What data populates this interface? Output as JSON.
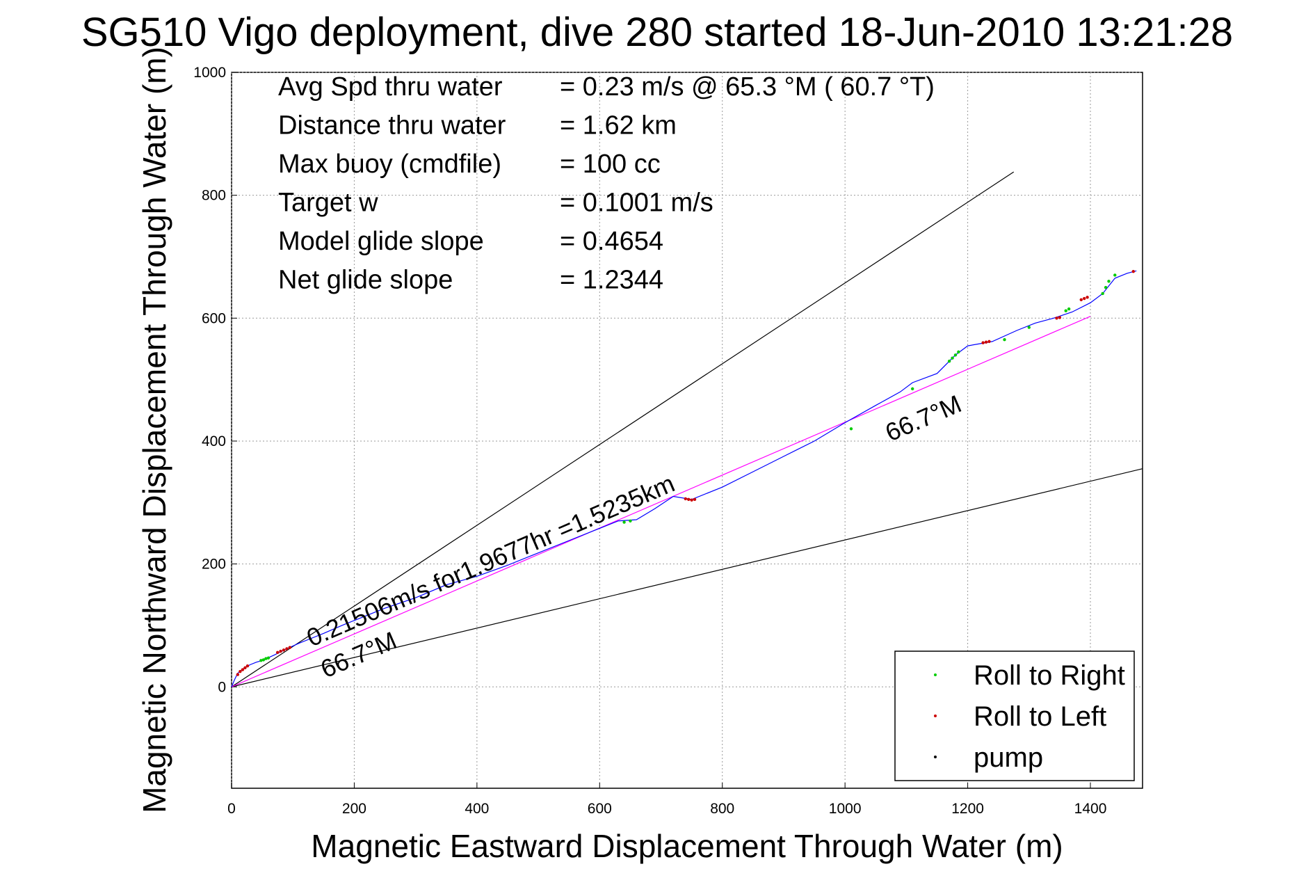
{
  "title": "SG510 Vigo deployment, dive 280 started 18-Jun-2010 13:21:28",
  "stats": [
    {
      "label": "Avg Spd thru water",
      "value": "=  0.23 m/s @  65.3 °M ( 60.7 °T)"
    },
    {
      "label": "Distance thru water",
      "value": "=  1.62 km"
    },
    {
      "label": "Max buoy (cmdfile)",
      "value": "= 100 cc"
    },
    {
      "label": "Target w",
      "value": "= 0.1001 m/s"
    },
    {
      "label": "Model glide slope",
      "value": "= 0.4654"
    },
    {
      "label": "Net glide slope",
      "value": "= 1.2344"
    }
  ],
  "annotations": {
    "speed_label": "0.21506m/s for1.9677hr =1.5235km",
    "heading_label_near": "66.7°M",
    "heading_label_far": "66.7°M"
  },
  "chart_data": {
    "type": "line",
    "xlabel": "Magnetic Eastward Displacement Through Water (m)",
    "ylabel": "Magnetic Northward Displacement Through Water (m)",
    "xlim": [
      0,
      1485
    ],
    "ylim": [
      -165,
      1000
    ],
    "xticks": [
      "0",
      "200",
      "400",
      "600",
      "800",
      "1000",
      "1200",
      "1400"
    ],
    "yticks": [
      "0",
      "200",
      "400",
      "600",
      "800",
      "1000"
    ],
    "xtick_values": [
      0,
      200,
      400,
      600,
      800,
      1000,
      1200,
      1400
    ],
    "ytick_values": [
      0,
      200,
      400,
      600,
      800,
      1000
    ],
    "grid": true,
    "track": {
      "color": "#0000ff",
      "x": [
        0,
        5,
        10,
        20,
        30,
        40,
        50,
        70,
        90,
        110,
        130,
        150,
        180,
        210,
        250,
        300,
        350,
        400,
        450,
        500,
        550,
        600,
        630,
        660,
        690,
        720,
        750,
        800,
        850,
        900,
        950,
        1000,
        1050,
        1090,
        1110,
        1150,
        1180,
        1200,
        1240,
        1280,
        1310,
        1340,
        1370,
        1400,
        1420,
        1440,
        1460,
        1475
      ],
      "y": [
        0,
        12,
        22,
        30,
        36,
        40,
        43,
        52,
        62,
        71,
        79,
        87,
        100,
        112,
        128,
        145,
        166,
        180,
        198,
        218,
        238,
        258,
        270,
        272,
        290,
        310,
        305,
        325,
        350,
        375,
        400,
        430,
        458,
        480,
        495,
        510,
        540,
        555,
        562,
        580,
        592,
        600,
        610,
        625,
        640,
        665,
        673,
        677
      ]
    },
    "dive_line": {
      "x": [
        0,
        1275
      ],
      "y": [
        0,
        838
      ],
      "color": "#000000"
    },
    "climb_line": {
      "x": [
        0,
        1485
      ],
      "y": [
        0,
        355
      ],
      "color": "#000000"
    },
    "net_line": {
      "x": [
        0,
        1400
      ],
      "y": [
        0,
        603
      ],
      "color": "#ff00ff"
    },
    "series": [
      {
        "name": "Roll to Right",
        "color": "#00cc00",
        "x": [
          48,
          52,
          56,
          60,
          640,
          650,
          1010,
          1110,
          1170,
          1175,
          1180,
          1185,
          1260,
          1300,
          1360,
          1365,
          1420,
          1425,
          1430,
          1440
        ],
        "y": [
          43,
          44,
          46,
          47,
          268,
          270,
          420,
          485,
          530,
          535,
          540,
          545,
          565,
          585,
          612,
          615,
          640,
          650,
          660,
          670
        ]
      },
      {
        "name": "Roll to Left",
        "color": "#cc0000",
        "x": [
          10,
          14,
          18,
          22,
          26,
          75,
          80,
          85,
          90,
          95,
          740,
          745,
          750,
          755,
          1225,
          1230,
          1235,
          1345,
          1350,
          1385,
          1390,
          1395,
          1470
        ],
        "y": [
          20,
          25,
          28,
          31,
          34,
          56,
          58,
          60,
          62,
          64,
          306,
          305,
          304,
          305,
          560,
          561,
          562,
          600,
          601,
          630,
          632,
          634,
          676
        ]
      },
      {
        "name": "pump",
        "color": "#000000",
        "x": [],
        "y": []
      }
    ],
    "legend_position": "bottom-right"
  }
}
